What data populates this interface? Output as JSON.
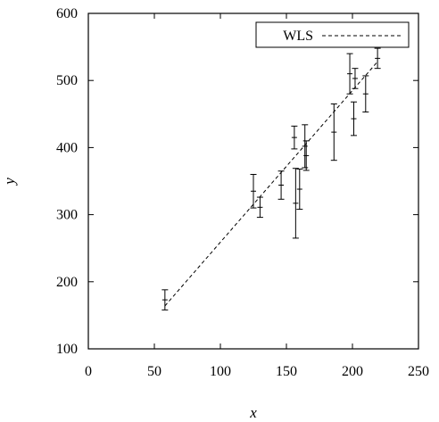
{
  "chart_data": {
    "type": "scatter",
    "title": "",
    "xlabel": "x",
    "ylabel": "y",
    "xlim": [
      0,
      250
    ],
    "ylim": [
      100,
      600
    ],
    "xticks": [
      "0",
      "50",
      "100",
      "150",
      "200",
      "250"
    ],
    "yticks": [
      "100",
      "200",
      "300",
      "400",
      "500",
      "600"
    ],
    "grid": false,
    "legend_position": "top-right",
    "series": [
      {
        "name": "",
        "kind": "points-with-error-bars",
        "points": [
          {
            "x": 58,
            "y": 173,
            "err": 15
          },
          {
            "x": 125,
            "y": 335,
            "err": 25
          },
          {
            "x": 130,
            "y": 311,
            "err": 15
          },
          {
            "x": 146,
            "y": 344,
            "err": 21
          },
          {
            "x": 156,
            "y": 415,
            "err": 17
          },
          {
            "x": 157,
            "y": 317,
            "err": 52
          },
          {
            "x": 160,
            "y": 338,
            "err": 30
          },
          {
            "x": 164,
            "y": 402,
            "err": 32
          },
          {
            "x": 165,
            "y": 388,
            "err": 22
          },
          {
            "x": 186,
            "y": 423,
            "err": 42
          },
          {
            "x": 198,
            "y": 510,
            "err": 30
          },
          {
            "x": 201,
            "y": 443,
            "err": 25
          },
          {
            "x": 202,
            "y": 503,
            "err": 15
          },
          {
            "x": 210,
            "y": 480,
            "err": 27
          },
          {
            "x": 219,
            "y": 533,
            "err": 15
          }
        ]
      },
      {
        "name": "WLS",
        "kind": "dashed-line",
        "x": [
          58,
          219
        ],
        "y": [
          164,
          528
        ]
      }
    ]
  }
}
